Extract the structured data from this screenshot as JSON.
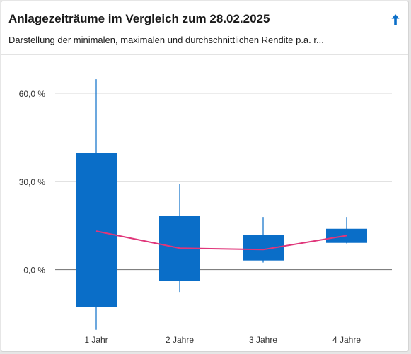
{
  "header": {
    "title": "Anlagezeiträume im Vergleich zum 28.02.2025",
    "subtitle": "Darstellung der minimalen, maximalen und durchschnittlichen Rendite p.a. r..."
  },
  "icons": {
    "collapse": "arrow-up-icon"
  },
  "colors": {
    "box": "#0a6ec8",
    "average_line": "#e0367a",
    "grid": "#d9d9d9",
    "zero_line": "#808080",
    "text": "#333333"
  },
  "chart_data": {
    "type": "boxplot",
    "categories": [
      "1 Jahr",
      "2 Jahre",
      "3 Jahre",
      "4 Jahre"
    ],
    "series": [
      {
        "role": "min",
        "values": [
          -20.5,
          -7.6,
          2.4,
          8.9
        ]
      },
      {
        "role": "box_low",
        "values": [
          -12.8,
          -3.9,
          3.1,
          9.1
        ]
      },
      {
        "role": "box_high",
        "values": [
          39.6,
          18.3,
          11.7,
          13.9
        ]
      },
      {
        "role": "max",
        "values": [
          64.8,
          29.2,
          17.9,
          17.9
        ]
      },
      {
        "role": "average",
        "values": [
          13.1,
          7.3,
          6.8,
          11.6
        ]
      }
    ],
    "y_ticks": [
      0,
      30,
      60
    ],
    "y_tick_labels": [
      "0,0 %",
      "30,0 %",
      "60,0 %"
    ],
    "ylim": [
      -28,
      73
    ],
    "grid": true,
    "legend": "none",
    "xlabel": "",
    "ylabel": ""
  }
}
